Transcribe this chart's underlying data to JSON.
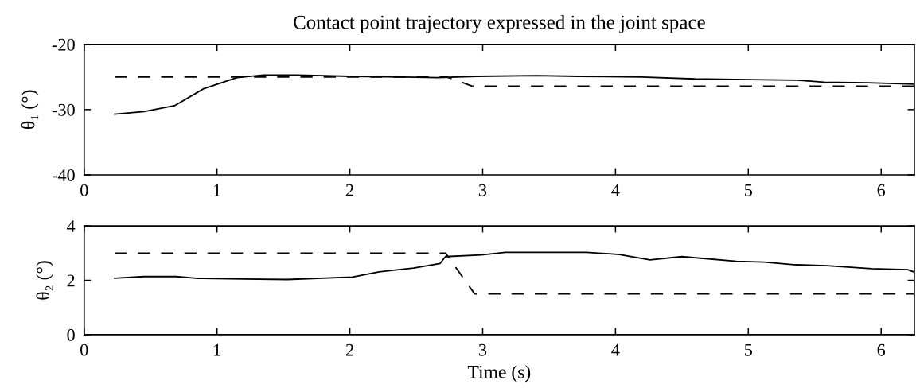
{
  "chart_data": [
    {
      "type": "line",
      "title": "Contact point trajectory expressed in the joint space",
      "ylabel": "θ₁ (°)",
      "xlim": [
        0,
        6.25
      ],
      "xticks": [
        0,
        1,
        2,
        3,
        4,
        5,
        6
      ],
      "ylim": [
        -40,
        -20
      ],
      "yticks": [
        -40,
        -30,
        -20
      ],
      "series": [
        {
          "color": "#000000",
          "line_style": "solid",
          "x": [
            0.23,
            0.45,
            0.68,
            0.9,
            1.15,
            1.35,
            1.6,
            2.0,
            2.4,
            2.66,
            2.96,
            3.4,
            3.72,
            4.2,
            4.6,
            5.0,
            5.37,
            5.57,
            5.9,
            6.25
          ],
          "values": [
            -30.7,
            -30.3,
            -29.4,
            -26.8,
            -25.1,
            -24.7,
            -24.7,
            -24.9,
            -25.0,
            -25.1,
            -24.9,
            -24.8,
            -24.9,
            -25.0,
            -25.3,
            -25.4,
            -25.5,
            -25.8,
            -25.9,
            -26.1
          ]
        },
        {
          "color": "#000000",
          "line_style": "dashed",
          "x": [
            0.23,
            2.73,
            2.92,
            6.25
          ],
          "values": [
            -25,
            -25,
            -26.4,
            -26.4
          ]
        }
      ]
    },
    {
      "type": "line",
      "xlabel": "Time (s)",
      "ylabel": "θ₂ (°)",
      "xlim": [
        0,
        6.25
      ],
      "xticks": [
        0,
        1,
        2,
        3,
        4,
        5,
        6
      ],
      "ylim": [
        0,
        4
      ],
      "yticks": [
        0,
        2,
        4
      ],
      "series": [
        {
          "color": "#000000",
          "line_style": "solid",
          "x": [
            0.23,
            0.45,
            0.69,
            0.86,
            1.2,
            1.53,
            2.02,
            2.22,
            2.48,
            2.68,
            2.72,
            2.99,
            3.17,
            3.78,
            4.03,
            4.26,
            4.5,
            4.91,
            5.12,
            5.36,
            5.59,
            5.93,
            6.2,
            6.25
          ],
          "values": [
            2.08,
            2.14,
            2.14,
            2.07,
            2.05,
            2.03,
            2.12,
            2.31,
            2.45,
            2.62,
            2.87,
            2.93,
            3.03,
            3.03,
            2.95,
            2.75,
            2.87,
            2.7,
            2.67,
            2.57,
            2.54,
            2.43,
            2.39,
            2.3
          ]
        },
        {
          "color": "#000000",
          "line_style": "dashed",
          "x": [
            0.23,
            2.72,
            2.94,
            6.25
          ],
          "values": [
            3,
            3,
            1.5,
            1.5
          ]
        }
      ]
    }
  ]
}
